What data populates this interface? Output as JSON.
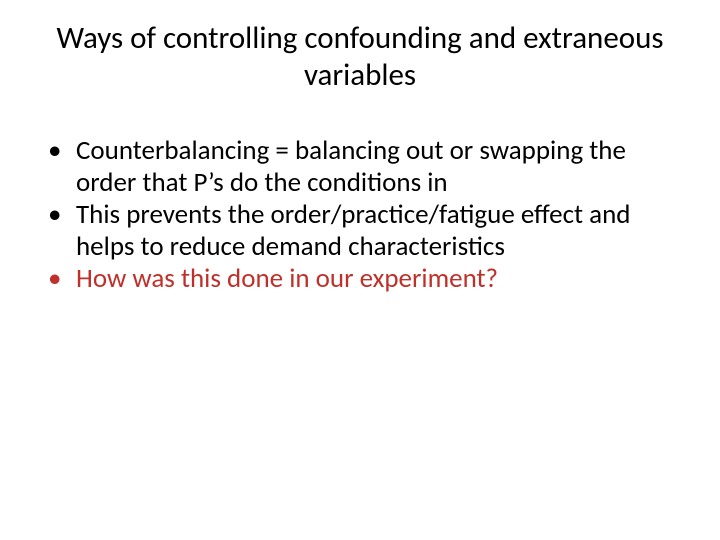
{
  "slide": {
    "title": "Ways of controlling confounding and extraneous variables",
    "bullets": [
      {
        "text": "Counterbalancing = balancing out or swapping the order that P’s do the conditions in",
        "color": "#000000"
      },
      {
        "text": "This prevents the order/practice/fatigue effect and helps to reduce demand characteristics",
        "color": "#000000"
      },
      {
        "text": "How was this done in our experiment?",
        "color": "#c0302a"
      }
    ],
    "background_color": "#ffffff",
    "title_fontsize": 31,
    "body_fontsize": 27,
    "font_family": "Calibri"
  }
}
